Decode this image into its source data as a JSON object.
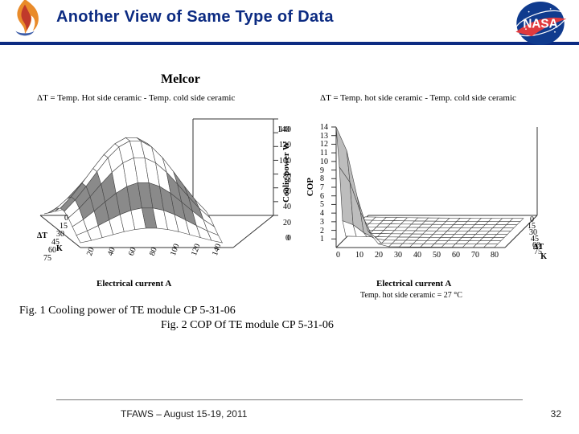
{
  "colors": {
    "title": "#0c2b82",
    "border": "#0c2b82",
    "nasa_blue": "#103b8e",
    "nasa_red": "#e03a3e",
    "flame_orange": "#e98b2a",
    "flame_red": "#c0392b",
    "flame_blue": "#3b5ca8",
    "surface_stroke": "#444444",
    "surface_fill_light": "#ffffff",
    "surface_fill_dark": "#8a8a8a"
  },
  "header": {
    "title": "Another View of Same Type of Data",
    "title_fontsize": 20
  },
  "melcor_label": "Melcor",
  "plots": {
    "left": {
      "type": "3d-surface",
      "title": "ΔT  = Temp. Hot side ceramic - Temp. cold side ceramic",
      "x_axis": {
        "label": "Electrical current A",
        "ticks": [
          20,
          40,
          60,
          80,
          100,
          120,
          140
        ]
      },
      "y_axis": {
        "label": "ΔT  K",
        "ticks": [
          0,
          15,
          30,
          45,
          60,
          75
        ]
      },
      "z_axis": {
        "label": "Coolig power W",
        "ticks": [
          0,
          20,
          40,
          60,
          80,
          100,
          120,
          140
        ]
      },
      "mesh": {
        "nx": 14,
        "ny": 10,
        "peak": 140,
        "dark_band_z": [
          40,
          80
        ]
      }
    },
    "right": {
      "type": "3d-surface",
      "title": "ΔT = Temp. hot side ceramic  - Temp. cold side ceramic",
      "subtitle": "Temp. hot side ceramic = 27 °C",
      "x_axis": {
        "label": "Electrical current A",
        "ticks": [
          0,
          10,
          20,
          30,
          40,
          50,
          60,
          70,
          80
        ]
      },
      "y_axis": {
        "label": "ΔT  K",
        "ticks": [
          0,
          15,
          30,
          45,
          60,
          75
        ]
      },
      "z_axis": {
        "label": "COP",
        "ticks": [
          1,
          2,
          3,
          4,
          5,
          6,
          7,
          8,
          9,
          10,
          11,
          12,
          13,
          14
        ]
      },
      "mesh": {
        "nx": 16,
        "ny": 10,
        "spike_x": 1,
        "spike_y": 1,
        "peak": 14
      }
    }
  },
  "captions": {
    "fig1": "Fig. 1 Cooling power of  TE module CP 5-31-06",
    "fig2": "Fig. 2 COP Of TE module CP 5-31-06"
  },
  "footer": {
    "text": "TFAWS – August 15-19, 2011",
    "page": "32"
  }
}
